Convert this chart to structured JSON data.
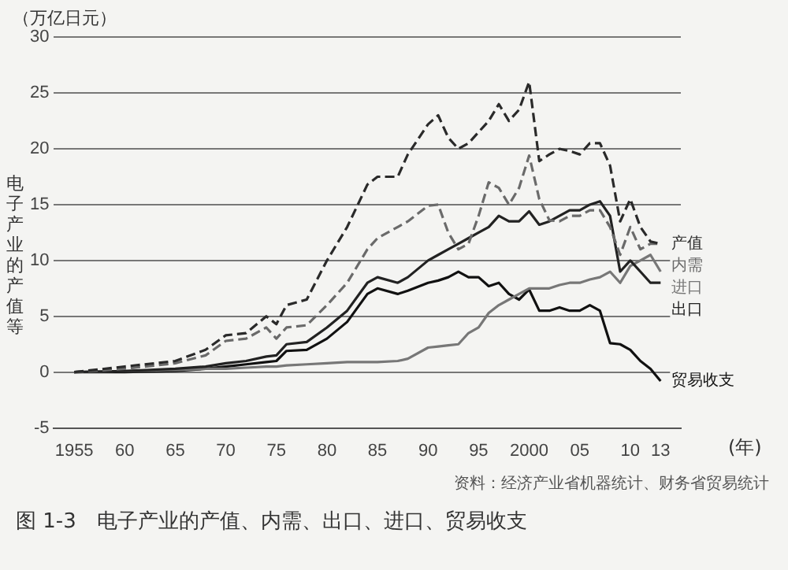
{
  "chart_data": {
    "type": "line",
    "title": "图 1-3　电子产业的产值、内需、出口、进口、贸易收支",
    "xlabel": "(年)",
    "ylabel": "电子产业的产值等",
    "annotations": [
      "（万亿日元）",
      "资料：经济产业省机器统计、财务省贸易统计"
    ],
    "x": [
      1955,
      1960,
      1965,
      1968,
      1970,
      1972,
      1974,
      1975,
      1976,
      1978,
      1980,
      1982,
      1984,
      1985,
      1987,
      1988,
      1990,
      1991,
      1992,
      1993,
      1994,
      1995,
      1996,
      1997,
      1998,
      1999,
      2000,
      2001,
      2002,
      2003,
      2004,
      2005,
      2006,
      2007,
      2008,
      2009,
      2010,
      2011,
      2012,
      2013
    ],
    "series": [
      {
        "name": "产值",
        "color": "#2a2a2a",
        "line_style": "dashed",
        "values": [
          0,
          0.5,
          1,
          2,
          3.3,
          3.5,
          5,
          4.3,
          6,
          6.5,
          10,
          13,
          16.8,
          17.5,
          17.5,
          19.5,
          22.2,
          23,
          21,
          20,
          20.5,
          21.5,
          22.5,
          24,
          22.5,
          23.5,
          26,
          18.9,
          19.5,
          20,
          19.8,
          19.5,
          20.5,
          20.5,
          18.5,
          13.5,
          15.5,
          13,
          11.7,
          11.5
        ]
      },
      {
        "name": "内需",
        "color": "#6a6a6a",
        "line_style": "dashed",
        "values": [
          0,
          0.3,
          0.8,
          1.5,
          2.8,
          3,
          4,
          3,
          4,
          4.2,
          6,
          8,
          11,
          12,
          13,
          13.5,
          14.9,
          15,
          12.5,
          11,
          11.5,
          14,
          17,
          16.5,
          15,
          16.5,
          19.4,
          15.5,
          13.6,
          13.5,
          14,
          14,
          14.5,
          14.5,
          13,
          10.5,
          13,
          11,
          11.5,
          11.5
        ]
      },
      {
        "name": "出口",
        "color": "#222222",
        "line_style": "solid",
        "values": [
          0,
          0.1,
          0.3,
          0.5,
          0.8,
          1,
          1.4,
          1.5,
          2.5,
          2.7,
          4,
          5.5,
          8,
          8.5,
          8,
          8.5,
          10,
          10.5,
          11,
          11.5,
          12,
          12.5,
          13,
          14,
          13.5,
          13.5,
          14.4,
          13.2,
          13.5,
          14,
          14.5,
          14.5,
          15,
          15.3,
          14,
          9,
          10,
          9,
          8,
          8
        ]
      },
      {
        "name": "进口",
        "color": "#777777",
        "line_style": "solid",
        "values": [
          0,
          0.1,
          0.2,
          0.3,
          0.3,
          0.4,
          0.5,
          0.5,
          0.6,
          0.7,
          0.8,
          0.9,
          0.9,
          0.9,
          1,
          1.2,
          2.2,
          2.3,
          2.4,
          2.5,
          3.5,
          4,
          5.3,
          6,
          6.5,
          7,
          7.5,
          7.5,
          7.5,
          7.8,
          8,
          8,
          8.3,
          8.5,
          9,
          8,
          9.5,
          10,
          10.5,
          9
        ]
      },
      {
        "name": "贸易收支",
        "color": "#111111",
        "line_style": "solid",
        "values": [
          0,
          0,
          0.1,
          0.3,
          0.5,
          0.7,
          0.9,
          1,
          1.9,
          2,
          3,
          4.5,
          7,
          7.5,
          7,
          7.3,
          8,
          8.2,
          8.5,
          9,
          8.5,
          8.5,
          7.7,
          8,
          7,
          6.5,
          7.4,
          5.5,
          5.5,
          5.8,
          5.5,
          5.5,
          6,
          5.5,
          2.6,
          2.5,
          2,
          1,
          0.3,
          -0.8
        ]
      }
    ],
    "xlim": [
      1953,
      2015
    ],
    "xticks": [
      {
        "value": 1955,
        "label": "1955"
      },
      {
        "value": 1960,
        "label": "60"
      },
      {
        "value": 1965,
        "label": "65"
      },
      {
        "value": 1970,
        "label": "70"
      },
      {
        "value": 1975,
        "label": "75"
      },
      {
        "value": 1980,
        "label": "80"
      },
      {
        "value": 1985,
        "label": "85"
      },
      {
        "value": 1990,
        "label": "90"
      },
      {
        "value": 1995,
        "label": "95"
      },
      {
        "value": 2000,
        "label": "2000"
      },
      {
        "value": 2005,
        "label": "05"
      },
      {
        "value": 2010,
        "label": "10"
      },
      {
        "value": 2013,
        "label": "13"
      }
    ],
    "ylim": [
      -5,
      30
    ],
    "yticks": [
      -5,
      0,
      5,
      10,
      15,
      20,
      25,
      30
    ],
    "grid": "y",
    "legend": false,
    "marker": "none"
  }
}
